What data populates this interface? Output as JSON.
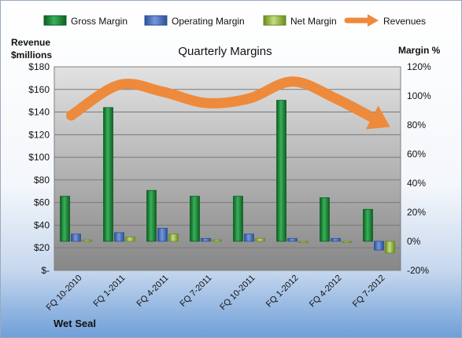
{
  "chart_data": {
    "type": "bar",
    "title": "Quarterly Margins",
    "company": "Wet Seal",
    "y_left_label": [
      "Revenue",
      "$millions"
    ],
    "y_right_label": "Margin %",
    "y_left_ticks": [
      "$-",
      "$20",
      "$40",
      "$60",
      "$80",
      "$100",
      "$120",
      "$140",
      "$160",
      "$180"
    ],
    "y_left_lim": [
      0,
      180
    ],
    "y_right_ticks": [
      "-20%",
      "0%",
      "20%",
      "40%",
      "60%",
      "80%",
      "100%",
      "120%"
    ],
    "y_right_lim": [
      -20,
      120
    ],
    "categories": [
      "FQ 10-2010",
      "FQ 1-2011",
      "FQ 4-2011",
      "FQ 7-2011",
      "FQ 10-2011",
      "FQ 1-2012",
      "FQ 4-2012",
      "FQ 7-2012"
    ],
    "series": [
      {
        "name": "Gross Margin",
        "axis": "right",
        "color": "#1e8a3c",
        "values": [
          31,
          92,
          35,
          31,
          31,
          97,
          30,
          22
        ]
      },
      {
        "name": "Operating Margin",
        "axis": "right",
        "color": "#4a74c4",
        "values": [
          5,
          6,
          9,
          2,
          5,
          2,
          2,
          -6
        ]
      },
      {
        "name": "Net Margin",
        "axis": "right",
        "color": "#9ab848",
        "values": [
          1,
          3,
          5,
          1,
          2,
          0,
          0,
          -8
        ]
      },
      {
        "name": "Revenues",
        "axis": "left",
        "color": "#ee8a3c",
        "type": "trend-arrow",
        "values": [
          137,
          164,
          158,
          148,
          152,
          167,
          152,
          132
        ]
      }
    ],
    "grid": true,
    "legend_position": "top"
  }
}
